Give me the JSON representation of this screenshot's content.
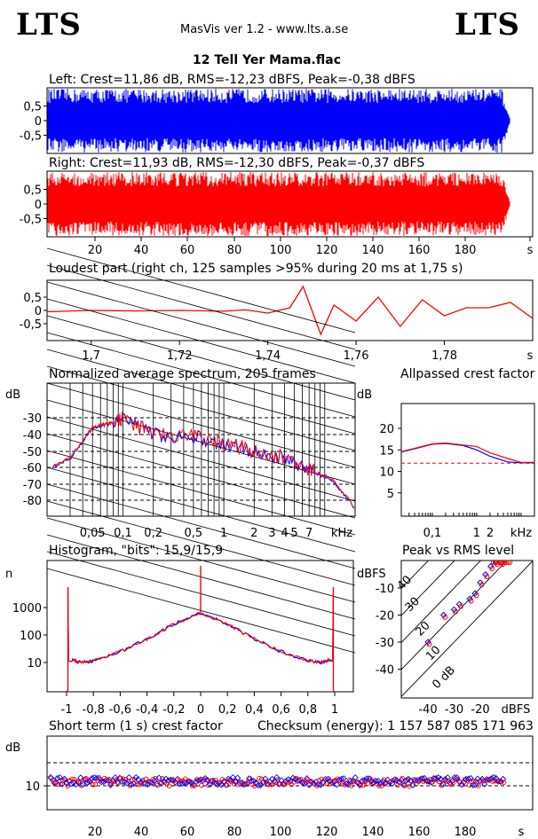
{
  "header": {
    "logo_left": "LTS",
    "logo_right": "LTS",
    "app": "MasVis ver 1.2 - www.lts.a.se",
    "file": "12 Tell Yer Mama.flac"
  },
  "colors": {
    "left": "#0000ff",
    "right": "#ff0000",
    "grid": "#000000"
  },
  "chart_data": [
    {
      "type": "area",
      "id": "left",
      "title": "Left: Crest=11,86 dB, RMS=-12,23 dBFS, Peak=-0,38 dBFS",
      "yticks": [
        "0,5",
        "0",
        "-0,5"
      ],
      "ylim": [
        -1,
        1
      ],
      "duration_s": 197,
      "color": "#0000ff"
    },
    {
      "type": "area",
      "id": "right",
      "title": "Right: Crest=11,93 dB, RMS=-12,30 dBFS, Peak=-0,37 dBFS",
      "yticks": [
        "0,5",
        "0",
        "-0,5"
      ],
      "ylim": [
        -1,
        1
      ],
      "duration_s": 197,
      "color": "#ff0000",
      "xticks": [
        "20",
        "40",
        "60",
        "80",
        "100",
        "120",
        "140",
        "160",
        "180",
        "s"
      ]
    },
    {
      "type": "line",
      "id": "loudest",
      "title": "Loudest part (right ch, 125 samples >95% during 20 ms at 1,75 s)",
      "yticks": [
        "0,5",
        "0",
        "-0,5"
      ],
      "xlim": [
        1.69,
        1.8
      ],
      "xticks": [
        "1,7",
        "1,72",
        "1,74",
        "1,76",
        "1,78",
        "s"
      ],
      "x": [
        1.69,
        1.7,
        1.71,
        1.72,
        1.73,
        1.735,
        1.74,
        1.745,
        1.748,
        1.752,
        1.755,
        1.76,
        1.765,
        1.77,
        1.775,
        1.78,
        1.785,
        1.79,
        1.795,
        1.8
      ],
      "y": [
        -0.05,
        0.0,
        -0.02,
        0.0,
        -0.03,
        0.02,
        -0.1,
        0.1,
        0.9,
        -0.9,
        0.2,
        -0.4,
        0.5,
        -0.6,
        0.4,
        -0.2,
        0.1,
        0.1,
        0.3,
        -0.3
      ]
    },
    {
      "type": "line",
      "id": "spectrum",
      "title": "Normalized average spectrum, 205 frames",
      "ylabel": "dB",
      "yticks": [
        "-30",
        "-40",
        "-50",
        "-60",
        "-70",
        "-80"
      ],
      "xticks": [
        "0,05",
        "0,1",
        "0,2",
        "0,5",
        "1",
        "2",
        "3",
        "4",
        "5",
        "7",
        "kHz"
      ],
      "x_khz": [
        0.02,
        0.03,
        0.05,
        0.07,
        0.1,
        0.2,
        0.5,
        1,
        2,
        4,
        7,
        12,
        20
      ],
      "y_db": [
        -60,
        -55,
        -36,
        -34,
        -31,
        -40,
        -42,
        -46,
        -50,
        -55,
        -62,
        -68,
        -85
      ]
    },
    {
      "type": "line",
      "id": "allpassed",
      "title": "Allpassed crest factor",
      "ylabel": "dB",
      "yticks": [
        "20",
        "15",
        "10",
        "5"
      ],
      "xticks": [
        "0,1",
        "1",
        "2",
        "kHz"
      ],
      "x_khz": [
        0.02,
        0.05,
        0.1,
        0.2,
        0.5,
        1,
        2,
        5,
        10,
        20
      ],
      "series": [
        {
          "y": [
            14.5,
            15.5,
            16.3,
            16.5,
            16.0,
            15.0,
            13.5,
            12.2,
            12.0,
            12.0
          ]
        }
      ],
      "reference_db": 11.9
    },
    {
      "type": "line",
      "id": "histogram",
      "title": "Histogram, \"bits\": 15,9/15,9",
      "ylabel": "n",
      "yticks": [
        "1000",
        "100",
        "10"
      ],
      "xticks": [
        "-1",
        "-0,8",
        "-0,6",
        "-0,4",
        "-0,2",
        "0",
        "0,2",
        "0,4",
        "0,6",
        "0,8",
        "1"
      ],
      "x": [
        -1.0,
        -0.96,
        -0.9,
        -0.8,
        -0.6,
        -0.4,
        -0.2,
        0,
        0.2,
        0.4,
        0.6,
        0.8,
        0.9,
        0.96,
        1.0
      ],
      "y_log10": [
        0,
        1.1,
        1.0,
        1.05,
        1.4,
        1.85,
        2.4,
        2.8,
        2.4,
        1.85,
        1.4,
        1.05,
        1.0,
        1.1,
        0
      ]
    },
    {
      "type": "scatter",
      "id": "peakrms",
      "title": "Peak vs RMS level",
      "ylabel": "dBFS",
      "yticks": [
        "-10",
        "-20",
        "-30",
        "-40"
      ],
      "xticks": [
        "-40",
        "-30",
        "-20",
        "dBFS"
      ],
      "diag_labels": [
        "40",
        "30",
        "20",
        "10",
        "0 dB"
      ],
      "points": [
        [
          -40,
          -30
        ],
        [
          -34,
          -20
        ],
        [
          -30,
          -18
        ],
        [
          -28,
          -16
        ],
        [
          -24,
          -14
        ],
        [
          -22,
          -12
        ],
        [
          -20,
          -8
        ],
        [
          -18,
          -5
        ],
        [
          -16,
          -2
        ],
        [
          -14,
          -0.5
        ],
        [
          -12,
          -0.4
        ]
      ]
    },
    {
      "type": "scatter",
      "id": "shortterm",
      "title": "Short term (1 s) crest factor",
      "ylabel": "dB",
      "checksum": "Checksum (energy):  1 157 587 085 171 963",
      "yticks": [
        "10"
      ],
      "xticks": [
        "20",
        "40",
        "60",
        "80",
        "100",
        "120",
        "140",
        "160",
        "180",
        "s"
      ],
      "duration_s": 197,
      "mean_db": 11.9
    }
  ]
}
